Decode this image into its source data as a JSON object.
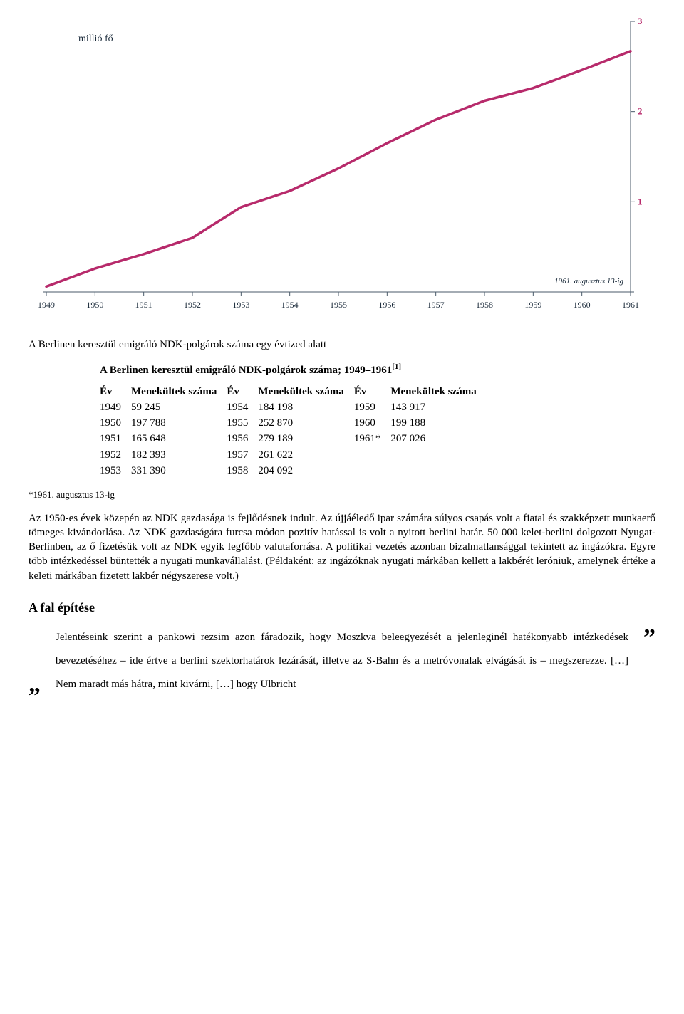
{
  "chart": {
    "type": "line",
    "y_axis_label": "millió fő",
    "note": "1961. augusztus 13-ig",
    "line_color": "#b72a6b",
    "line_width": 3.5,
    "text_color": "#1a2a3a",
    "axis_color": "#4a5a6a",
    "tick_color": "#4a5a6a",
    "right_tick_label_color": "#b72a6b",
    "background": "#ffffff",
    "x_labels": [
      "1949",
      "1950",
      "1951",
      "1952",
      "1953",
      "1954",
      "1955",
      "1956",
      "1957",
      "1958",
      "1959",
      "1960",
      "1961"
    ],
    "y_ticks": [
      1,
      2,
      3
    ],
    "xlim": [
      1949,
      1961
    ],
    "ylim": [
      0,
      3
    ],
    "points": [
      [
        1949,
        0.06
      ],
      [
        1950,
        0.26
      ],
      [
        1951,
        0.42
      ],
      [
        1952,
        0.6
      ],
      [
        1953,
        0.94
      ],
      [
        1954,
        1.12
      ],
      [
        1955,
        1.37
      ],
      [
        1956,
        1.65
      ],
      [
        1957,
        1.91
      ],
      [
        1958,
        2.12
      ],
      [
        1959,
        2.26
      ],
      [
        1960,
        2.46
      ],
      [
        1961,
        2.67
      ]
    ],
    "font_size_axis": 12,
    "font_size_label": 14,
    "font_size_note": 11
  },
  "captions": {
    "chart_caption": "A Berlinen keresztül emigráló NDK-polgárok száma egy évtized alatt",
    "table_title_prefix": "A Berlinen keresztül emigráló NDK-polgárok száma; 1949–1961",
    "table_title_sup": "[1]"
  },
  "table": {
    "headers": [
      "Év",
      "Menekültek száma",
      "Év",
      "Menekültek száma",
      "Év",
      "Menekültek száma"
    ],
    "rows": [
      [
        "1949",
        "59 245",
        "1954",
        "184 198",
        "1959",
        "143 917"
      ],
      [
        "1950",
        "197 788",
        "1955",
        "252 870",
        "1960",
        "199 188"
      ],
      [
        "1951",
        "165 648",
        "1956",
        "279 189",
        "1961*",
        "207 026"
      ],
      [
        "1952",
        "182 393",
        "1957",
        "261 622",
        "",
        ""
      ],
      [
        "1953",
        "331 390",
        "1958",
        "204 092",
        "",
        ""
      ]
    ]
  },
  "footnote": "*1961. augusztus 13-ig",
  "body_paragraph": "Az 1950-es évek közepén az NDK gazdasága is fejlődésnek indult. Az újjáéledő ipar számára súlyos csapás volt a fiatal és szakképzett munkaerő tömeges kivándorlása. Az NDK gazdaságára furcsa módon pozitív hatással is volt a nyitott berlini határ. 50 000 kelet-berlini dolgozott Nyugat-Berlinben, az ő fizetésük volt az NDK egyik legfőbb valutaforrása. A politikai vezetés azonban bizalmatlansággal tekintett az ingázókra. Egyre több intézkedéssel büntették a nyugati munkavállalást. (Példaként: az ingázóknak nyugati márkában kellett a lakbérét leróniuk, amelynek értéke a keleti márkában fizetett lakbér négyszerese volt.)",
  "section_heading": "A fal építése",
  "quote": {
    "open": "„",
    "close": "”",
    "text": "Jelentéseink szerint a pankowi rezsim azon fáradozik, hogy Moszkva beleegyezését a jelenleginél hatékonyabb intézkedések bevezetéséhez – ide értve a berlini szektorhatárok lezárását, illetve az S-Bahn és a metróvonalak elvágását is – megszerezze. […] Nem maradt más hátra, mint kivárni, […] hogy Ulbricht"
  }
}
